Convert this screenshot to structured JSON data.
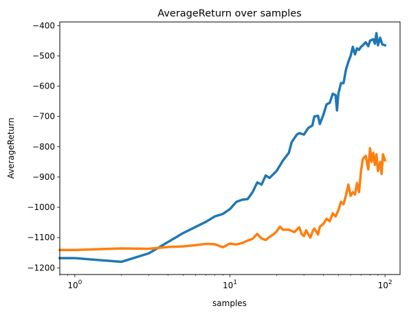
{
  "chart_data": {
    "type": "line",
    "title": "AverageReturn  over samples",
    "xlabel": "samples",
    "ylabel": "AverageReturn",
    "xscale": "log",
    "xlim": [
      0.8,
      125
    ],
    "ylim": [
      -1222,
      -388
    ],
    "grid": false,
    "legend": "none",
    "x_ticks": [
      {
        "value": 1,
        "base": "10",
        "exp": "0"
      },
      {
        "value": 10,
        "base": "10",
        "exp": "1"
      },
      {
        "value": 100,
        "base": "10",
        "exp": "2"
      }
    ],
    "y_ticks": [
      -1200,
      -1100,
      -1000,
      -900,
      -800,
      -700,
      -600,
      -500,
      -400
    ],
    "series": [
      {
        "color": "#1f77b4",
        "points": [
          [
            0.8,
            -1168
          ],
          [
            1.0,
            -1168
          ],
          [
            2.0,
            -1180
          ],
          [
            3.0,
            -1152
          ],
          [
            5.0,
            -1085
          ],
          [
            7.0,
            -1048
          ],
          [
            8.0,
            -1030
          ],
          [
            9.0,
            -1022
          ],
          [
            10.0,
            -1006
          ],
          [
            11.0,
            -982
          ],
          [
            12.0,
            -975
          ],
          [
            13.0,
            -973
          ],
          [
            14.0,
            -950
          ],
          [
            15.0,
            -918
          ],
          [
            16.0,
            -925
          ],
          [
            17.0,
            -895
          ],
          [
            18.0,
            -903
          ],
          [
            20.0,
            -880
          ],
          [
            22.0,
            -845
          ],
          [
            24.0,
            -820
          ],
          [
            25.0,
            -785
          ],
          [
            27.0,
            -760
          ],
          [
            28.0,
            -755
          ],
          [
            30.0,
            -760
          ],
          [
            32.0,
            -738
          ],
          [
            34.0,
            -730
          ],
          [
            35.0,
            -700
          ],
          [
            37.0,
            -698
          ],
          [
            38.0,
            -725
          ],
          [
            40.0,
            -695
          ],
          [
            42.0,
            -660
          ],
          [
            44.0,
            -655
          ],
          [
            46.0,
            -625
          ],
          [
            48.0,
            -630
          ],
          [
            49.0,
            -680
          ],
          [
            50.0,
            -625
          ],
          [
            52.0,
            -590
          ],
          [
            54.0,
            -590
          ],
          [
            56.0,
            -545
          ],
          [
            58.0,
            -520
          ],
          [
            60.0,
            -500
          ],
          [
            62.0,
            -470
          ],
          [
            64.0,
            -495
          ],
          [
            66.0,
            -475
          ],
          [
            68.0,
            -480
          ],
          [
            70.0,
            -470
          ],
          [
            72.0,
            -465
          ],
          [
            75.0,
            -455
          ],
          [
            78.0,
            -468
          ],
          [
            80.0,
            -450
          ],
          [
            84.0,
            -445
          ],
          [
            86.0,
            -460
          ],
          [
            88.0,
            -425
          ],
          [
            90.0,
            -465
          ],
          [
            93.0,
            -440
          ],
          [
            96.0,
            -462
          ],
          [
            100.0,
            -465
          ]
        ]
      },
      {
        "color": "#ff7f0e",
        "points": [
          [
            0.8,
            -1141
          ],
          [
            1.0,
            -1141
          ],
          [
            2.0,
            -1136
          ],
          [
            3.0,
            -1137
          ],
          [
            4.0,
            -1131
          ],
          [
            5.0,
            -1129
          ],
          [
            6.0,
            -1125
          ],
          [
            7.0,
            -1121
          ],
          [
            8.0,
            -1122
          ],
          [
            9.0,
            -1132
          ],
          [
            10.0,
            -1120
          ],
          [
            11.0,
            -1123
          ],
          [
            12.0,
            -1118
          ],
          [
            13.0,
            -1110
          ],
          [
            14.0,
            -1104
          ],
          [
            15.0,
            -1088
          ],
          [
            16.0,
            -1103
          ],
          [
            17.0,
            -1108
          ],
          [
            18.0,
            -1098
          ],
          [
            19.0,
            -1090
          ],
          [
            20.0,
            -1080
          ],
          [
            21.0,
            -1064
          ],
          [
            22.0,
            -1074
          ],
          [
            24.0,
            -1074
          ],
          [
            26.0,
            -1082
          ],
          [
            28.0,
            -1066
          ],
          [
            29.0,
            -1088
          ],
          [
            30.0,
            -1095
          ],
          [
            31.0,
            -1076
          ],
          [
            33.0,
            -1100
          ],
          [
            34.0,
            -1082
          ],
          [
            35.0,
            -1070
          ],
          [
            37.0,
            -1090
          ],
          [
            38.0,
            -1064
          ],
          [
            40.0,
            -1055
          ],
          [
            42.0,
            -1038
          ],
          [
            44.0,
            -1046
          ],
          [
            46.0,
            -1020
          ],
          [
            48.0,
            -1030
          ],
          [
            50.0,
            -1010
          ],
          [
            52.0,
            -982
          ],
          [
            54.0,
            -990
          ],
          [
            56.0,
            -960
          ],
          [
            58.0,
            -925
          ],
          [
            60.0,
            -962
          ],
          [
            62.0,
            -950
          ],
          [
            64.0,
            -958
          ],
          [
            66.0,
            -920
          ],
          [
            68.0,
            -950
          ],
          [
            70.0,
            -880
          ],
          [
            72.0,
            -840
          ],
          [
            75.0,
            -830
          ],
          [
            78.0,
            -875
          ],
          [
            80.0,
            -805
          ],
          [
            82.0,
            -850
          ],
          [
            84.0,
            -820
          ],
          [
            86.0,
            -860
          ],
          [
            88.0,
            -825
          ],
          [
            90.0,
            -880
          ],
          [
            93.0,
            -850
          ],
          [
            95.0,
            -890
          ],
          [
            97.0,
            -825
          ],
          [
            100.0,
            -845
          ]
        ]
      }
    ]
  }
}
